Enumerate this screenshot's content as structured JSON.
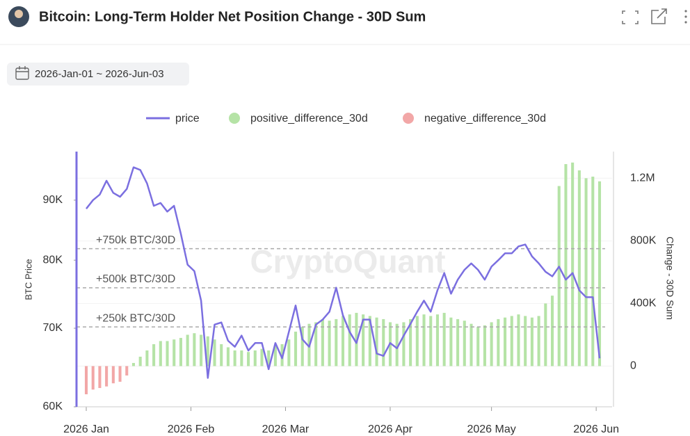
{
  "header": {
    "title": "Bitcoin: Long-Term Holder Net Position Change - 30D Sum",
    "date_range": "2026-Jan-01 ~ 2026-Jun-03"
  },
  "chart_data": {
    "type": "line-bar",
    "watermark": "CryptoQuant",
    "ylabel": "BTC Price",
    "y2label": "Change - 30D Sum",
    "log_y": true,
    "grid": true,
    "ylim": [
      60000,
      99000
    ],
    "yticks": [
      {
        "value": 60000,
        "label": "60K"
      },
      {
        "value": 70000,
        "label": "70K"
      },
      {
        "value": 80000,
        "label": "80K"
      },
      {
        "value": 90000,
        "label": "90K"
      }
    ],
    "y2lim": [
      -260000,
      1370000
    ],
    "y2ticks": [
      0,
      {
        "value": 400000,
        "label": "400K"
      },
      {
        "value": 800000,
        "label": "800K"
      },
      {
        "value": 1200000,
        "label": "1.2M"
      }
    ],
    "xticks": [
      {
        "value": "2026-01-01",
        "label": "2026 Jan"
      },
      {
        "value": "2026-02-01",
        "label": "2026 Feb"
      },
      {
        "value": "2026-03-01",
        "label": "2026 Mar"
      },
      {
        "value": "2026-04-01",
        "label": "2026 Apr"
      },
      {
        "value": "2026-05-01",
        "label": "2026 May"
      },
      {
        "value": "2026-06-01",
        "label": "2026 Jun"
      }
    ],
    "annotations": [
      {
        "text": "+750k BTC/30D",
        "value": 750000
      },
      {
        "text": "+500k BTC/30D",
        "value": 500000
      },
      {
        "text": "+250k BTC/30D",
        "value": 250000
      }
    ],
    "x": [
      "2026-01-01",
      "2026-01-03",
      "2026-01-05",
      "2026-01-07",
      "2026-01-09",
      "2026-01-11",
      "2026-01-13",
      "2026-01-15",
      "2026-01-17",
      "2026-01-19",
      "2026-01-21",
      "2026-01-23",
      "2026-01-25",
      "2026-01-27",
      "2026-01-29",
      "2026-01-31",
      "2026-02-02",
      "2026-02-04",
      "2026-02-06",
      "2026-02-08",
      "2026-02-10",
      "2026-02-12",
      "2026-02-14",
      "2026-02-16",
      "2026-02-18",
      "2026-02-20",
      "2026-02-22",
      "2026-02-24",
      "2026-02-26",
      "2026-02-28",
      "2026-03-02",
      "2026-03-04",
      "2026-03-06",
      "2026-03-08",
      "2026-03-10",
      "2026-03-12",
      "2026-03-14",
      "2026-03-16",
      "2026-03-18",
      "2026-03-20",
      "2026-03-22",
      "2026-03-24",
      "2026-03-26",
      "2026-03-28",
      "2026-03-30",
      "2026-04-01",
      "2026-04-03",
      "2026-04-05",
      "2026-04-07",
      "2026-04-09",
      "2026-04-11",
      "2026-04-13",
      "2026-04-15",
      "2026-04-17",
      "2026-04-19",
      "2026-04-21",
      "2026-04-23",
      "2026-04-25",
      "2026-04-27",
      "2026-04-29",
      "2026-05-01",
      "2026-05-03",
      "2026-05-05",
      "2026-05-07",
      "2026-05-09",
      "2026-05-11",
      "2026-05-13",
      "2026-05-15",
      "2026-05-17",
      "2026-05-19",
      "2026-05-21",
      "2026-05-23",
      "2026-05-25",
      "2026-05-27",
      "2026-05-29",
      "2026-05-31",
      "2026-06-02"
    ],
    "series": [
      {
        "name": "price",
        "type": "line",
        "axis": "y",
        "color": "#7b6fe0",
        "values": [
          88500,
          90000,
          91000,
          93500,
          91300,
          90600,
          92000,
          96000,
          95500,
          93000,
          89000,
          89500,
          88000,
          89000,
          84300,
          79300,
          78300,
          73900,
          63500,
          70500,
          70800,
          68300,
          67500,
          69000,
          67000,
          68000,
          68000,
          64600,
          68000,
          66000,
          69500,
          73200,
          68500,
          67500,
          70500,
          71200,
          72300,
          75800,
          71800,
          69500,
          68000,
          71200,
          71200,
          66600,
          66300,
          68000,
          67300,
          69000,
          70600,
          72300,
          73900,
          72300,
          75400,
          78000,
          74900,
          77000,
          78500,
          79500,
          78500,
          77000,
          79000,
          80000,
          81100,
          81100,
          82200,
          82500,
          80600,
          79500,
          78200,
          77500,
          79000,
          77000,
          78000,
          75400,
          74400,
          74400,
          66000
        ]
      },
      {
        "name": "positive_difference_30d",
        "type": "bar",
        "axis": "y2",
        "color": "#b5e3a6",
        "values": [
          null,
          null,
          null,
          null,
          null,
          null,
          null,
          20000,
          60000,
          100000,
          140000,
          160000,
          160000,
          170000,
          180000,
          200000,
          210000,
          200000,
          190000,
          170000,
          140000,
          120000,
          100000,
          100000,
          90000,
          100000,
          110000,
          100000,
          130000,
          140000,
          170000,
          220000,
          250000,
          270000,
          280000,
          300000,
          290000,
          300000,
          320000,
          330000,
          340000,
          330000,
          320000,
          310000,
          300000,
          280000,
          270000,
          280000,
          300000,
          320000,
          330000,
          320000,
          330000,
          340000,
          310000,
          300000,
          290000,
          270000,
          250000,
          260000,
          280000,
          300000,
          310000,
          320000,
          330000,
          320000,
          310000,
          320000,
          400000,
          450000,
          1150000,
          1290000,
          1300000,
          1250000,
          1200000,
          1210000,
          1180000
        ]
      },
      {
        "name": "negative_difference_30d",
        "type": "bar",
        "axis": "y2",
        "color": "#f2a7a7",
        "values": [
          -180000,
          -150000,
          -140000,
          -130000,
          -110000,
          -100000,
          -60000,
          null,
          null,
          null,
          null,
          null,
          null,
          null,
          null,
          null,
          null,
          null,
          null,
          null,
          null,
          null,
          null,
          null,
          null,
          null,
          null,
          null,
          null,
          null,
          null,
          null,
          null,
          null,
          null,
          null,
          null,
          null,
          null,
          null,
          null,
          null,
          null,
          null,
          null,
          null,
          null,
          null,
          null,
          null,
          null,
          null,
          null,
          null,
          null,
          null,
          null,
          null,
          null,
          null,
          null,
          null,
          null,
          null,
          null,
          null,
          null,
          null,
          null,
          null,
          null,
          null,
          null,
          null,
          null,
          null,
          null
        ]
      }
    ]
  }
}
